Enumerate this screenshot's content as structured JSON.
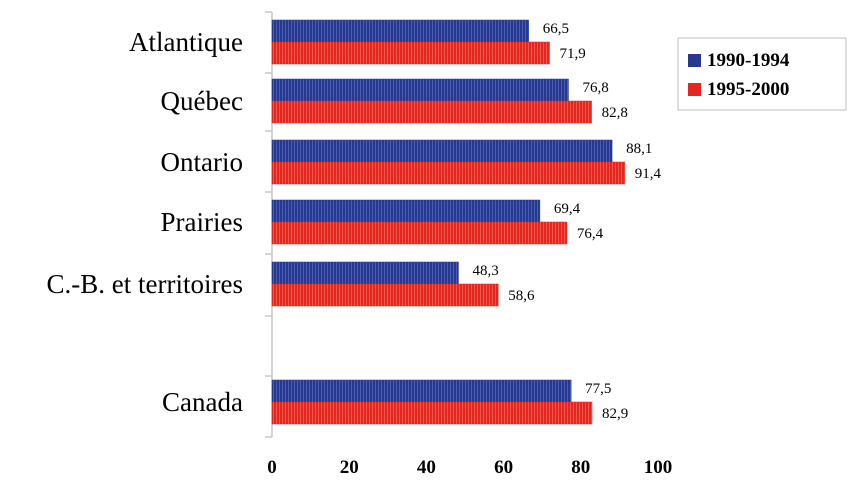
{
  "chart_data": {
    "type": "bar",
    "orientation": "horizontal",
    "categories": [
      "Atlantique",
      "Québec",
      "Ontario",
      "Prairies",
      "C.-B. et territoires",
      "",
      "Canada"
    ],
    "series": [
      {
        "name": "1990-1994",
        "color": "#27398f",
        "values": [
          66.5,
          76.8,
          88.1,
          69.4,
          48.3,
          null,
          77.5
        ],
        "labels": [
          "66,5",
          "76,8",
          "88,1",
          "69,4",
          "48,3",
          "",
          "77,5"
        ]
      },
      {
        "name": "1995-2000",
        "color": "#e3261f",
        "values": [
          71.9,
          82.8,
          91.4,
          76.4,
          58.6,
          null,
          82.9
        ],
        "labels": [
          "71,9",
          "82,8",
          "91,4",
          "76,4",
          "58,6",
          "",
          "82,9"
        ]
      }
    ],
    "xlim": [
      0,
      100
    ],
    "xticks": [
      "0",
      "20",
      "40",
      "60",
      "80",
      "100"
    ],
    "title": "",
    "xlabel": "",
    "ylabel": "",
    "grid": false,
    "legend_position": "top-right"
  }
}
